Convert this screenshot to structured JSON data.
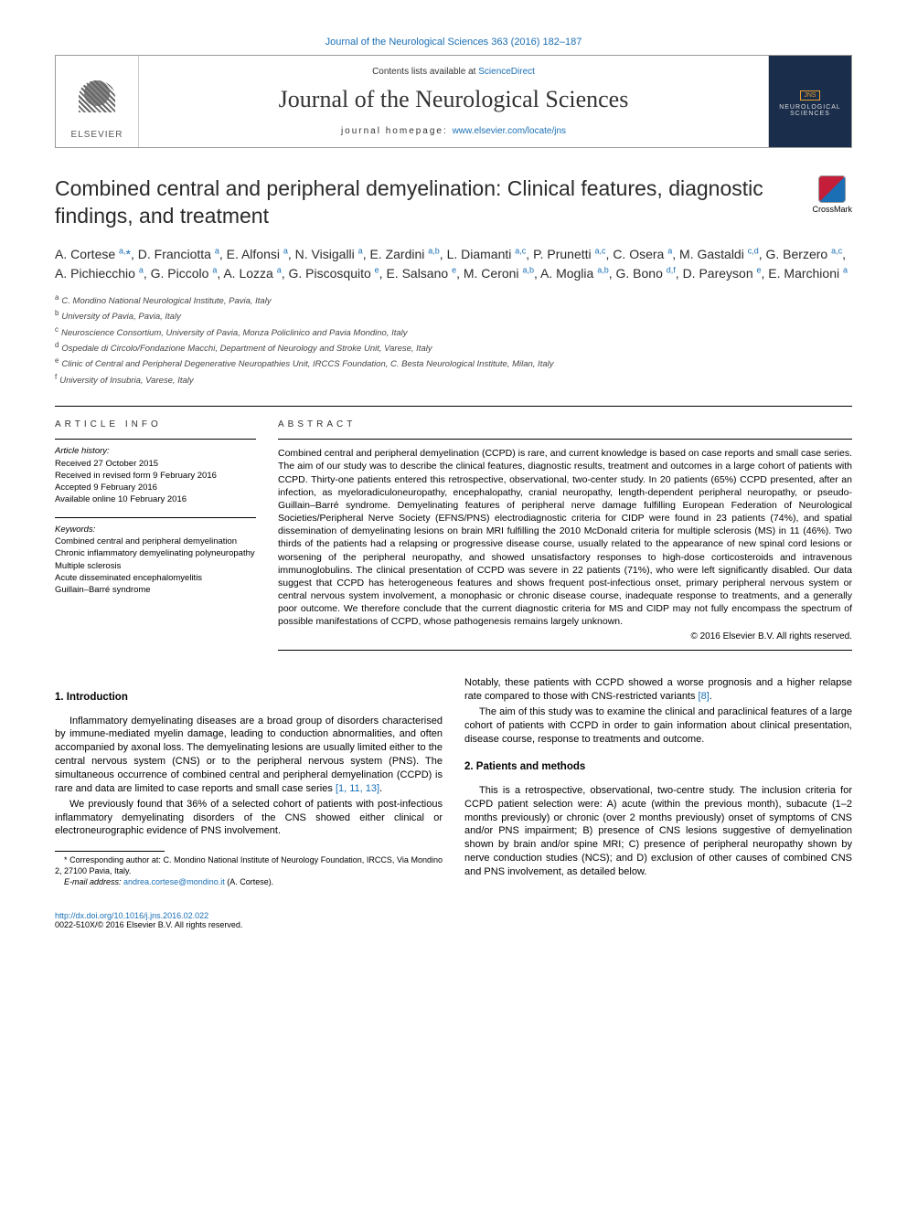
{
  "colors": {
    "link": "#1a6fb5",
    "accent_orange": "#e8a030",
    "cover_bg": "#1a2d4a",
    "text": "#000000",
    "border": "#999999"
  },
  "header": {
    "top_citation": "Journal of the Neurological Sciences 363 (2016) 182–187",
    "contents_prefix": "Contents lists available at ",
    "contents_link": "ScienceDirect",
    "journal_name": "Journal of the Neurological Sciences",
    "homepage_label": "journal homepage: ",
    "homepage_url": "www.elsevier.com/locate/jns",
    "publisher": "ELSEVIER",
    "cover_abbrev": "JNS",
    "cover_line": "NEUROLOGICAL SCIENCES"
  },
  "crossmark": "CrossMark",
  "title": "Combined central and peripheral demyelination: Clinical features, diagnostic findings, and treatment",
  "authors_html": "A. Cortese <sup>a,</sup><span class='star'>*</span>, D. Franciotta <sup>a</sup>, E. Alfonsi <sup>a</sup>, N. Visigalli <sup>a</sup>, E. Zardini <sup>a,b</sup>, L. Diamanti <sup>a,c</sup>, P. Prunetti <sup>a,c</sup>, C. Osera <sup>a</sup>, M. Gastaldi <sup>c,d</sup>, G. Berzero <sup>a,c</sup>, A. Pichiecchio <sup>a</sup>, G. Piccolo <sup>a</sup>, A. Lozza <sup>a</sup>, G. Piscosquito <sup>e</sup>, E. Salsano <sup>e</sup>, M. Ceroni <sup>a,b</sup>, A. Moglia <sup>a,b</sup>, G. Bono <sup>d,f</sup>, D. Pareyson <sup>e</sup>, E. Marchioni <sup>a</sup>",
  "affiliations": [
    {
      "key": "a",
      "text": "C. Mondino National Neurological Institute, Pavia, Italy"
    },
    {
      "key": "b",
      "text": "University of Pavia, Pavia, Italy"
    },
    {
      "key": "c",
      "text": "Neuroscience Consortium, University of Pavia, Monza Policlinico and Pavia Mondino, Italy"
    },
    {
      "key": "d",
      "text": "Ospedale di Circolo/Fondazione Macchi, Department of Neurology and Stroke Unit, Varese, Italy"
    },
    {
      "key": "e",
      "text": "Clinic of Central and Peripheral Degenerative Neuropathies Unit, IRCCS Foundation, C. Besta Neurological Institute, Milan, Italy"
    },
    {
      "key": "f",
      "text": "University of Insubria, Varese, Italy"
    }
  ],
  "article_info": {
    "heading": "article info",
    "history_label": "Article history:",
    "history": [
      "Received 27 October 2015",
      "Received in revised form 9 February 2016",
      "Accepted 9 February 2016",
      "Available online 10 February 2016"
    ],
    "keywords_label": "Keywords:",
    "keywords": [
      "Combined central and peripheral demyelination",
      "Chronic inflammatory demyelinating polyneuropathy",
      "Multiple sclerosis",
      "Acute disseminated encephalomyelitis",
      "Guillain–Barré syndrome"
    ]
  },
  "abstract": {
    "heading": "abstract",
    "text": "Combined central and peripheral demyelination (CCPD) is rare, and current knowledge is based on case reports and small case series. The aim of our study was to describe the clinical features, diagnostic results, treatment and outcomes in a large cohort of patients with CCPD. Thirty-one patients entered this retrospective, observational, two-center study. In 20 patients (65%) CCPD presented, after an infection, as myeloradiculoneuropathy, encephalopathy, cranial neuropathy, length-dependent peripheral neuropathy, or pseudo-Guillain–Barré syndrome. Demyelinating features of peripheral nerve damage fulfilling European Federation of Neurological Societies/Peripheral Nerve Society (EFNS/PNS) electrodiagnostic criteria for CIDP were found in 23 patients (74%), and spatial dissemination of demyelinating lesions on brain MRI fulfilling the 2010 McDonald criteria for multiple sclerosis (MS) in 11 (46%). Two thirds of the patients had a relapsing or progressive disease course, usually related to the appearance of new spinal cord lesions or worsening of the peripheral neuropathy, and showed unsatisfactory responses to high-dose corticosteroids and intravenous immunoglobulins. The clinical presentation of CCPD was severe in 22 patients (71%), who were left significantly disabled. Our data suggest that CCPD has heterogeneous features and shows frequent post-infectious onset, primary peripheral nervous system or central nervous system involvement, a monophasic or chronic disease course, inadequate response to treatments, and a generally poor outcome. We therefore conclude that the current diagnostic criteria for MS and CIDP may not fully encompass the spectrum of possible manifestations of CCPD, whose pathogenesis remains largely unknown.",
    "copyright": "© 2016 Elsevier B.V. All rights reserved."
  },
  "sections": {
    "intro_heading": "1. Introduction",
    "intro_p1": "Inflammatory demyelinating diseases are a broad group of disorders characterised by immune-mediated myelin damage, leading to conduction abnormalities, and often accompanied by axonal loss. The demyelinating lesions are usually limited either to the central nervous system (CNS) or to the peripheral nervous system (PNS). The simultaneous occurrence of combined central and peripheral demyelination (CCPD) is rare and data are limited to case reports and small case series ",
    "intro_p1_cite": "[1, 11, 13]",
    "intro_p2": "We previously found that 36% of a selected cohort of patients with post-infectious inflammatory demyelinating disorders of the CNS showed either clinical or electroneurographic evidence of PNS involvement.",
    "intro_p3a": "Notably, these patients with CCPD showed a worse prognosis and a higher relapse rate compared to those with CNS-restricted variants ",
    "intro_p3_cite": "[8]",
    "intro_p4": "The aim of this study was to examine the clinical and paraclinical features of a large cohort of patients with CCPD in order to gain information about clinical presentation, disease course, response to treatments and outcome.",
    "methods_heading": "2. Patients and methods",
    "methods_p1": "This is a retrospective, observational, two-centre study. The inclusion criteria for CCPD patient selection were: A) acute (within the previous month), subacute (1–2 months previously) or chronic (over 2 months previously) onset of symptoms of CNS and/or PNS impairment; B) presence of CNS lesions suggestive of demyelination shown by brain and/or spine MRI; C) presence of peripheral neuropathy shown by nerve conduction studies (NCS); and D) exclusion of other causes of combined CNS and PNS involvement, as detailed below."
  },
  "footnote": {
    "corr": "* Corresponding author at: C. Mondino National Institute of Neurology Foundation, IRCCS, Via Mondino 2, 27100 Pavia, Italy.",
    "email_label": "E-mail address: ",
    "email": "andrea.cortese@mondino.it",
    "email_paren": " (A. Cortese)."
  },
  "footer": {
    "doi": "http://dx.doi.org/10.1016/j.jns.2016.02.022",
    "issn_line": "0022-510X/© 2016 Elsevier B.V. All rights reserved."
  }
}
